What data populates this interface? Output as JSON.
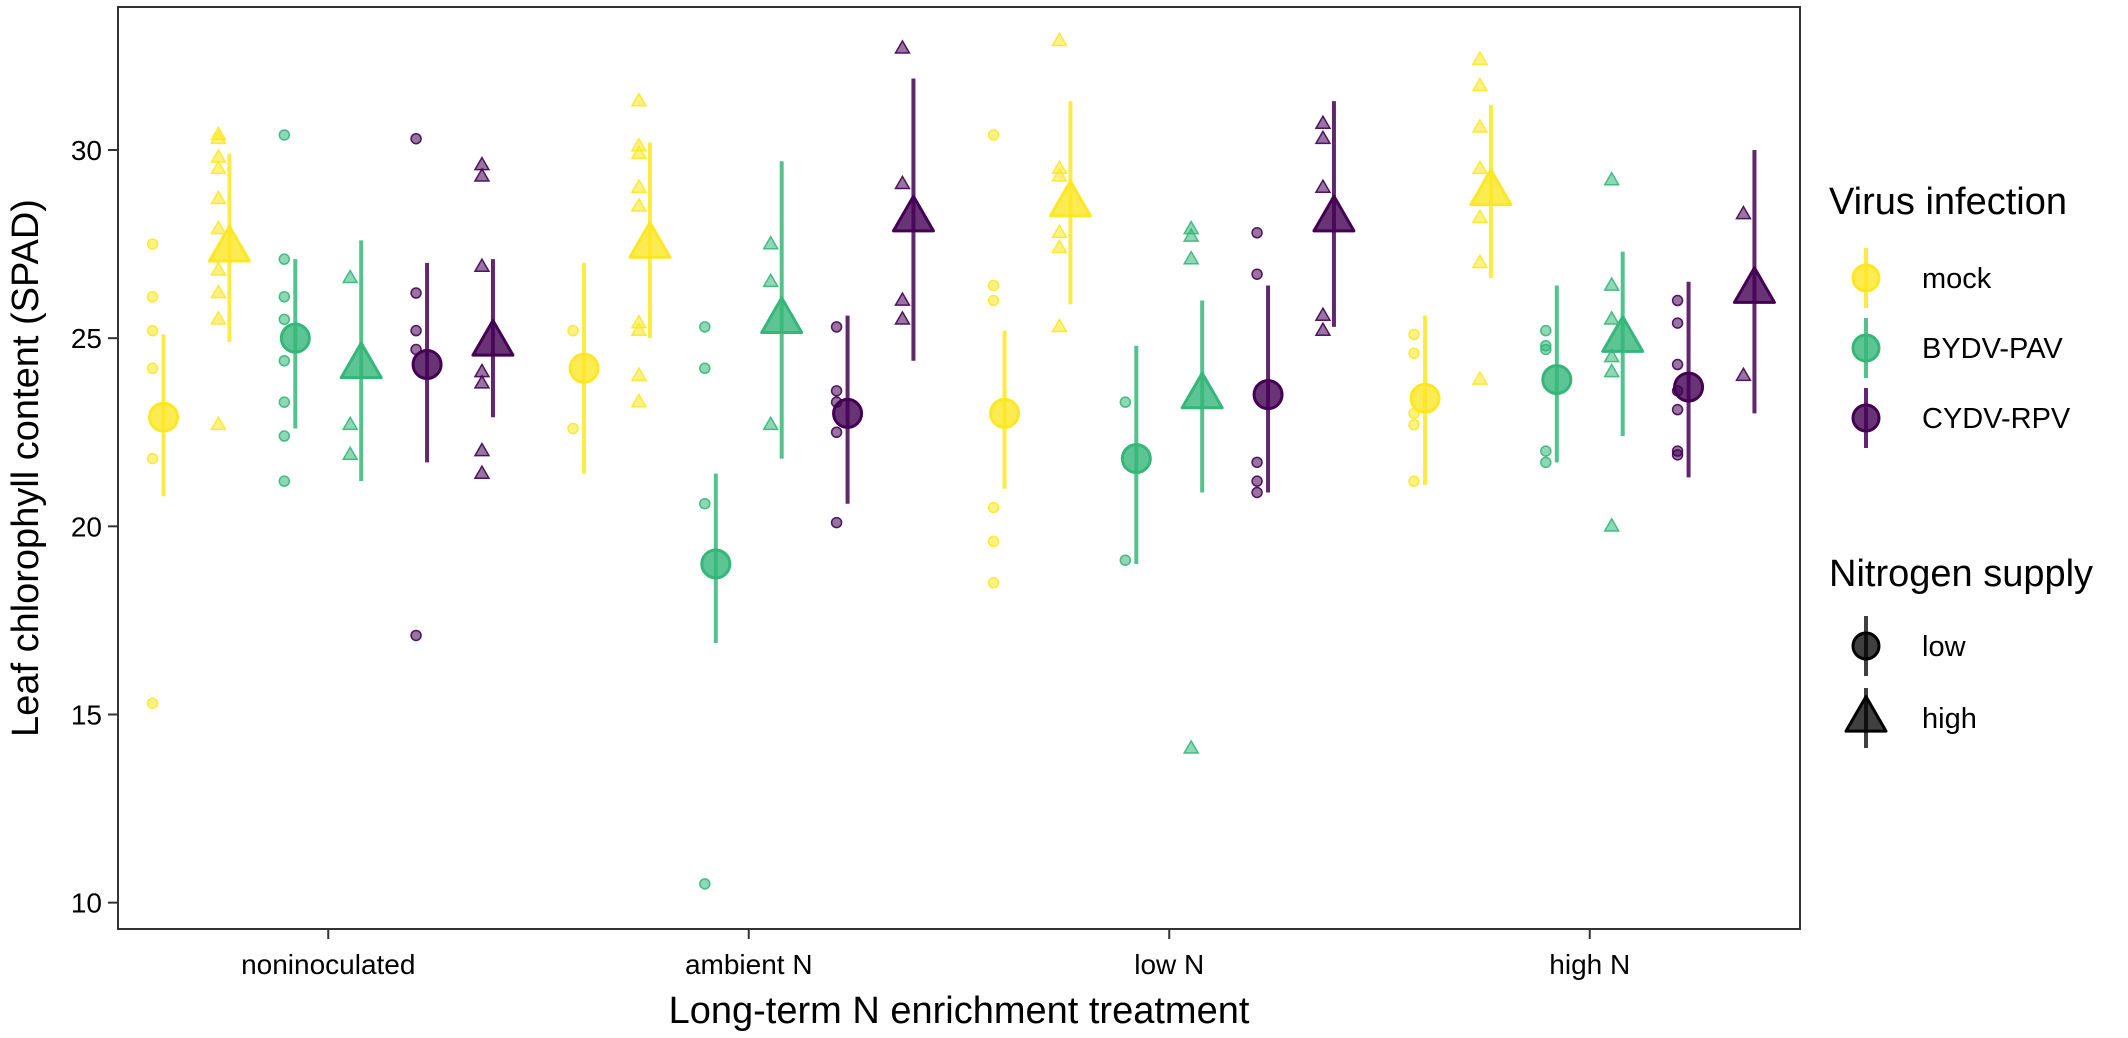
{
  "chart_data": {
    "type": "scatter",
    "xlabel": "Long-term N enrichment treatment",
    "ylabel": "Leaf chlorophyll content (SPAD)",
    "categories": [
      "noninoculated",
      "ambient N",
      "low N",
      "high N"
    ],
    "ylim": [
      9.3,
      33.8
    ],
    "yticks": [
      10,
      15,
      20,
      25,
      30
    ],
    "grid": false,
    "legend_position": "right",
    "legend": {
      "virus_title": "Virus infection",
      "virus_items": [
        {
          "key": "mock",
          "label": "mock",
          "color": "#FDE725"
        },
        {
          "key": "pav",
          "label": "BYDV-PAV",
          "color": "#35B779"
        },
        {
          "key": "rpv",
          "label": "CYDV-RPV",
          "color": "#440154"
        }
      ],
      "nitrogen_title": "Nitrogen supply",
      "nitrogen_items": [
        {
          "key": "low",
          "label": "low",
          "shape": "circle"
        },
        {
          "key": "high",
          "label": "high",
          "shape": "triangle"
        }
      ]
    },
    "series": [
      {
        "category": "noninoculated",
        "virus": "mock",
        "nitrogen": "low",
        "mean": 22.9,
        "lower": 20.8,
        "upper": 25.1,
        "points": [
          27.5,
          26.1,
          25.2,
          24.2,
          21.8,
          15.3
        ]
      },
      {
        "category": "noninoculated",
        "virus": "mock",
        "nitrogen": "high",
        "mean": 27.4,
        "lower": 24.9,
        "upper": 29.9,
        "points": [
          30.4,
          30.3,
          29.8,
          29.5,
          28.7,
          27.9,
          26.8,
          26.2,
          25.5,
          22.7
        ]
      },
      {
        "category": "noninoculated",
        "virus": "pav",
        "nitrogen": "low",
        "mean": 25.0,
        "lower": 22.6,
        "upper": 27.1,
        "points": [
          30.4,
          27.1,
          26.1,
          25.5,
          24.4,
          23.3,
          22.4,
          21.2
        ]
      },
      {
        "category": "noninoculated",
        "virus": "pav",
        "nitrogen": "high",
        "mean": 24.3,
        "lower": 21.2,
        "upper": 27.6,
        "points": [
          26.6,
          22.7,
          21.9
        ]
      },
      {
        "category": "noninoculated",
        "virus": "rpv",
        "nitrogen": "low",
        "mean": 24.3,
        "lower": 21.7,
        "upper": 27.0,
        "points": [
          30.3,
          26.2,
          25.2,
          24.7,
          17.1
        ]
      },
      {
        "category": "noninoculated",
        "virus": "rpv",
        "nitrogen": "high",
        "mean": 24.9,
        "lower": 22.9,
        "upper": 27.1,
        "points": [
          29.6,
          29.3,
          26.9,
          24.1,
          23.8,
          22.0,
          21.4
        ]
      },
      {
        "category": "ambient N",
        "virus": "mock",
        "nitrogen": "low",
        "mean": 24.2,
        "lower": 21.4,
        "upper": 27.0,
        "points": [
          25.2,
          22.6
        ]
      },
      {
        "category": "ambient N",
        "virus": "mock",
        "nitrogen": "high",
        "mean": 27.5,
        "lower": 25.0,
        "upper": 30.2,
        "points": [
          31.3,
          30.1,
          29.9,
          29.0,
          28.5,
          25.4,
          25.2,
          24.0,
          23.3
        ]
      },
      {
        "category": "ambient N",
        "virus": "pav",
        "nitrogen": "low",
        "mean": 19.0,
        "lower": 16.9,
        "upper": 21.4,
        "points": [
          25.3,
          24.2,
          20.6,
          10.5
        ]
      },
      {
        "category": "ambient N",
        "virus": "pav",
        "nitrogen": "high",
        "mean": 25.5,
        "lower": 21.8,
        "upper": 29.7,
        "points": [
          27.5,
          26.5,
          22.7
        ]
      },
      {
        "category": "ambient N",
        "virus": "rpv",
        "nitrogen": "low",
        "mean": 23.0,
        "lower": 20.6,
        "upper": 25.6,
        "points": [
          25.3,
          23.6,
          23.3,
          22.5,
          20.1
        ]
      },
      {
        "category": "ambient N",
        "virus": "rpv",
        "nitrogen": "high",
        "mean": 28.2,
        "lower": 24.4,
        "upper": 31.9,
        "points": [
          32.7,
          29.1,
          26.0,
          25.5
        ]
      },
      {
        "category": "low N",
        "virus": "mock",
        "nitrogen": "low",
        "mean": 23.0,
        "lower": 21.0,
        "upper": 25.2,
        "points": [
          30.4,
          26.4,
          26.0,
          20.5,
          19.6,
          18.5
        ]
      },
      {
        "category": "low N",
        "virus": "mock",
        "nitrogen": "high",
        "mean": 28.6,
        "lower": 25.9,
        "upper": 31.3,
        "points": [
          32.9,
          29.5,
          29.3,
          27.8,
          27.4,
          25.3
        ]
      },
      {
        "category": "low N",
        "virus": "pav",
        "nitrogen": "low",
        "mean": 21.8,
        "lower": 19.0,
        "upper": 24.8,
        "points": [
          23.3,
          19.1
        ]
      },
      {
        "category": "low N",
        "virus": "pav",
        "nitrogen": "high",
        "mean": 23.5,
        "lower": 20.9,
        "upper": 26.0,
        "points": [
          27.9,
          27.7,
          27.1,
          14.1
        ]
      },
      {
        "category": "low N",
        "virus": "rpv",
        "nitrogen": "low",
        "mean": 23.5,
        "lower": 20.9,
        "upper": 26.4,
        "points": [
          27.8,
          26.7,
          21.7,
          21.2,
          20.9
        ]
      },
      {
        "category": "low N",
        "virus": "rpv",
        "nitrogen": "high",
        "mean": 28.2,
        "lower": 25.3,
        "upper": 31.3,
        "points": [
          30.7,
          30.3,
          29.0,
          25.6,
          25.2
        ]
      },
      {
        "category": "high N",
        "virus": "mock",
        "nitrogen": "low",
        "mean": 23.4,
        "lower": 21.1,
        "upper": 25.6,
        "points": [
          25.1,
          24.6,
          23.0,
          22.7,
          21.2
        ]
      },
      {
        "category": "high N",
        "virus": "mock",
        "nitrogen": "high",
        "mean": 28.9,
        "lower": 26.6,
        "upper": 31.2,
        "points": [
          32.4,
          31.7,
          30.6,
          29.5,
          28.2,
          27.0,
          23.9
        ]
      },
      {
        "category": "high N",
        "virus": "pav",
        "nitrogen": "low",
        "mean": 23.9,
        "lower": 21.7,
        "upper": 26.4,
        "points": [
          25.2,
          24.8,
          24.7,
          22.0,
          21.7
        ]
      },
      {
        "category": "high N",
        "virus": "pav",
        "nitrogen": "high",
        "mean": 25.0,
        "lower": 22.4,
        "upper": 27.3,
        "points": [
          29.2,
          26.4,
          25.5,
          24.5,
          24.1,
          20.0
        ]
      },
      {
        "category": "high N",
        "virus": "rpv",
        "nitrogen": "low",
        "mean": 23.7,
        "lower": 21.3,
        "upper": 26.5,
        "points": [
          26.0,
          25.4,
          24.3,
          23.6,
          23.1,
          22.0,
          21.9
        ]
      },
      {
        "category": "high N",
        "virus": "rpv",
        "nitrogen": "high",
        "mean": 26.3,
        "lower": 23.0,
        "upper": 30.0,
        "points": [
          28.3,
          24.0
        ]
      }
    ]
  }
}
